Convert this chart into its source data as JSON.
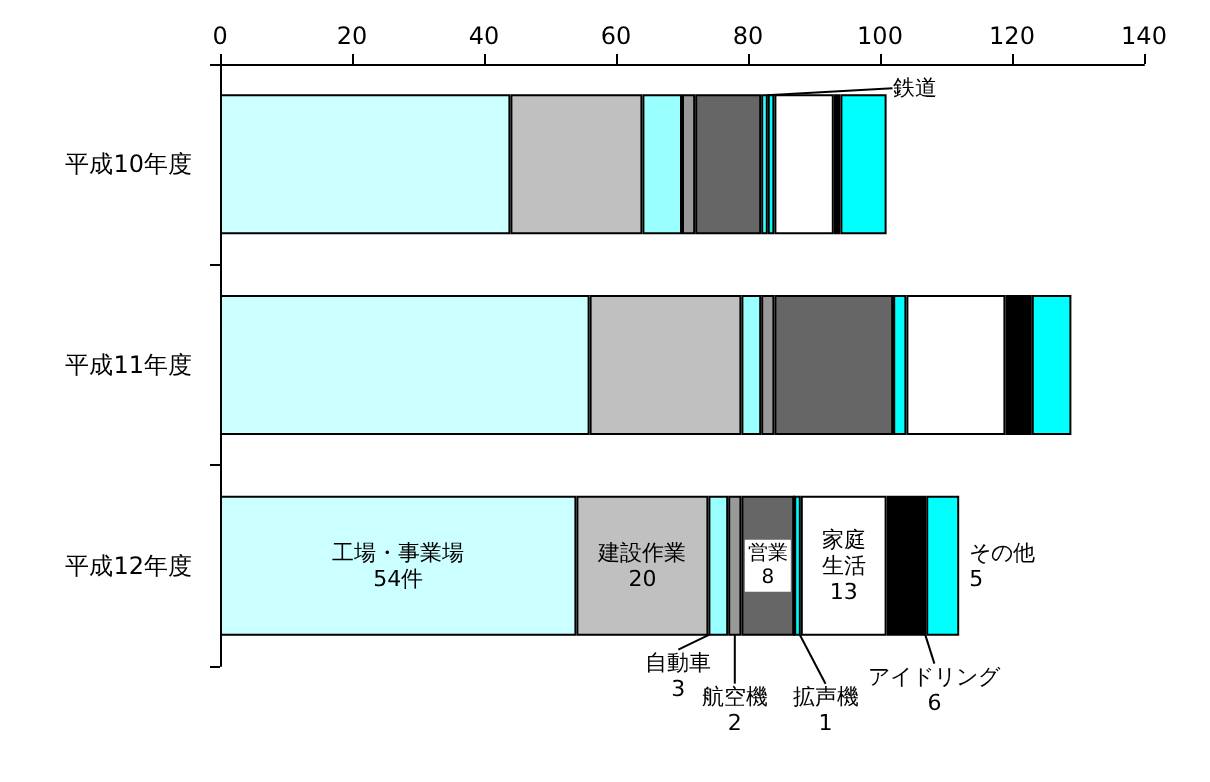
{
  "chart_data": {
    "type": "bar",
    "orientation": "horizontal",
    "stacked": true,
    "categories": [
      "平成10年度",
      "平成11年度",
      "平成12年度"
    ],
    "series": [
      {
        "name": "工場・事業場",
        "color": "#ccffff",
        "values": [
          44,
          56,
          54
        ],
        "value_labels": [
          null,
          null,
          "54件"
        ]
      },
      {
        "name": "建設作業",
        "color": "#c0c0c0",
        "values": [
          20,
          23,
          20
        ],
        "value_labels": [
          null,
          null,
          "20"
        ]
      },
      {
        "name": "自動車",
        "color": "#99ffff",
        "values": [
          6,
          3,
          3
        ],
        "value_labels": [
          null,
          null,
          "3"
        ]
      },
      {
        "name": "航空機",
        "color": "#999999",
        "values": [
          2,
          2,
          2
        ],
        "value_labels": [
          null,
          null,
          "2"
        ]
      },
      {
        "name": "営業",
        "color": "#666666",
        "values": [
          10,
          18,
          8
        ],
        "value_labels": [
          null,
          null,
          "8"
        ]
      },
      {
        "name": "鉄道",
        "color": "#33ffff",
        "values": [
          1,
          0,
          0
        ],
        "value_labels": [
          null,
          null,
          null
        ]
      },
      {
        "name": "拡声機",
        "color": "#00ffff",
        "values": [
          1,
          2,
          1
        ],
        "value_labels": [
          null,
          null,
          "1"
        ]
      },
      {
        "name": "家庭生活",
        "color": "#ffffff",
        "values": [
          9,
          15,
          13
        ],
        "value_labels": [
          null,
          null,
          "13"
        ]
      },
      {
        "name": "アイドリング",
        "color": "#000000",
        "values": [
          1,
          4,
          6
        ],
        "value_labels": [
          null,
          null,
          "6"
        ]
      },
      {
        "name": "その他",
        "color": "#00ffff",
        "values": [
          7,
          6,
          5
        ],
        "value_labels": [
          null,
          null,
          "5"
        ]
      }
    ],
    "xlim": [
      0,
      140
    ],
    "xticks": [
      0,
      20,
      40,
      60,
      80,
      100,
      120,
      140
    ],
    "grid": false,
    "legend": false
  }
}
